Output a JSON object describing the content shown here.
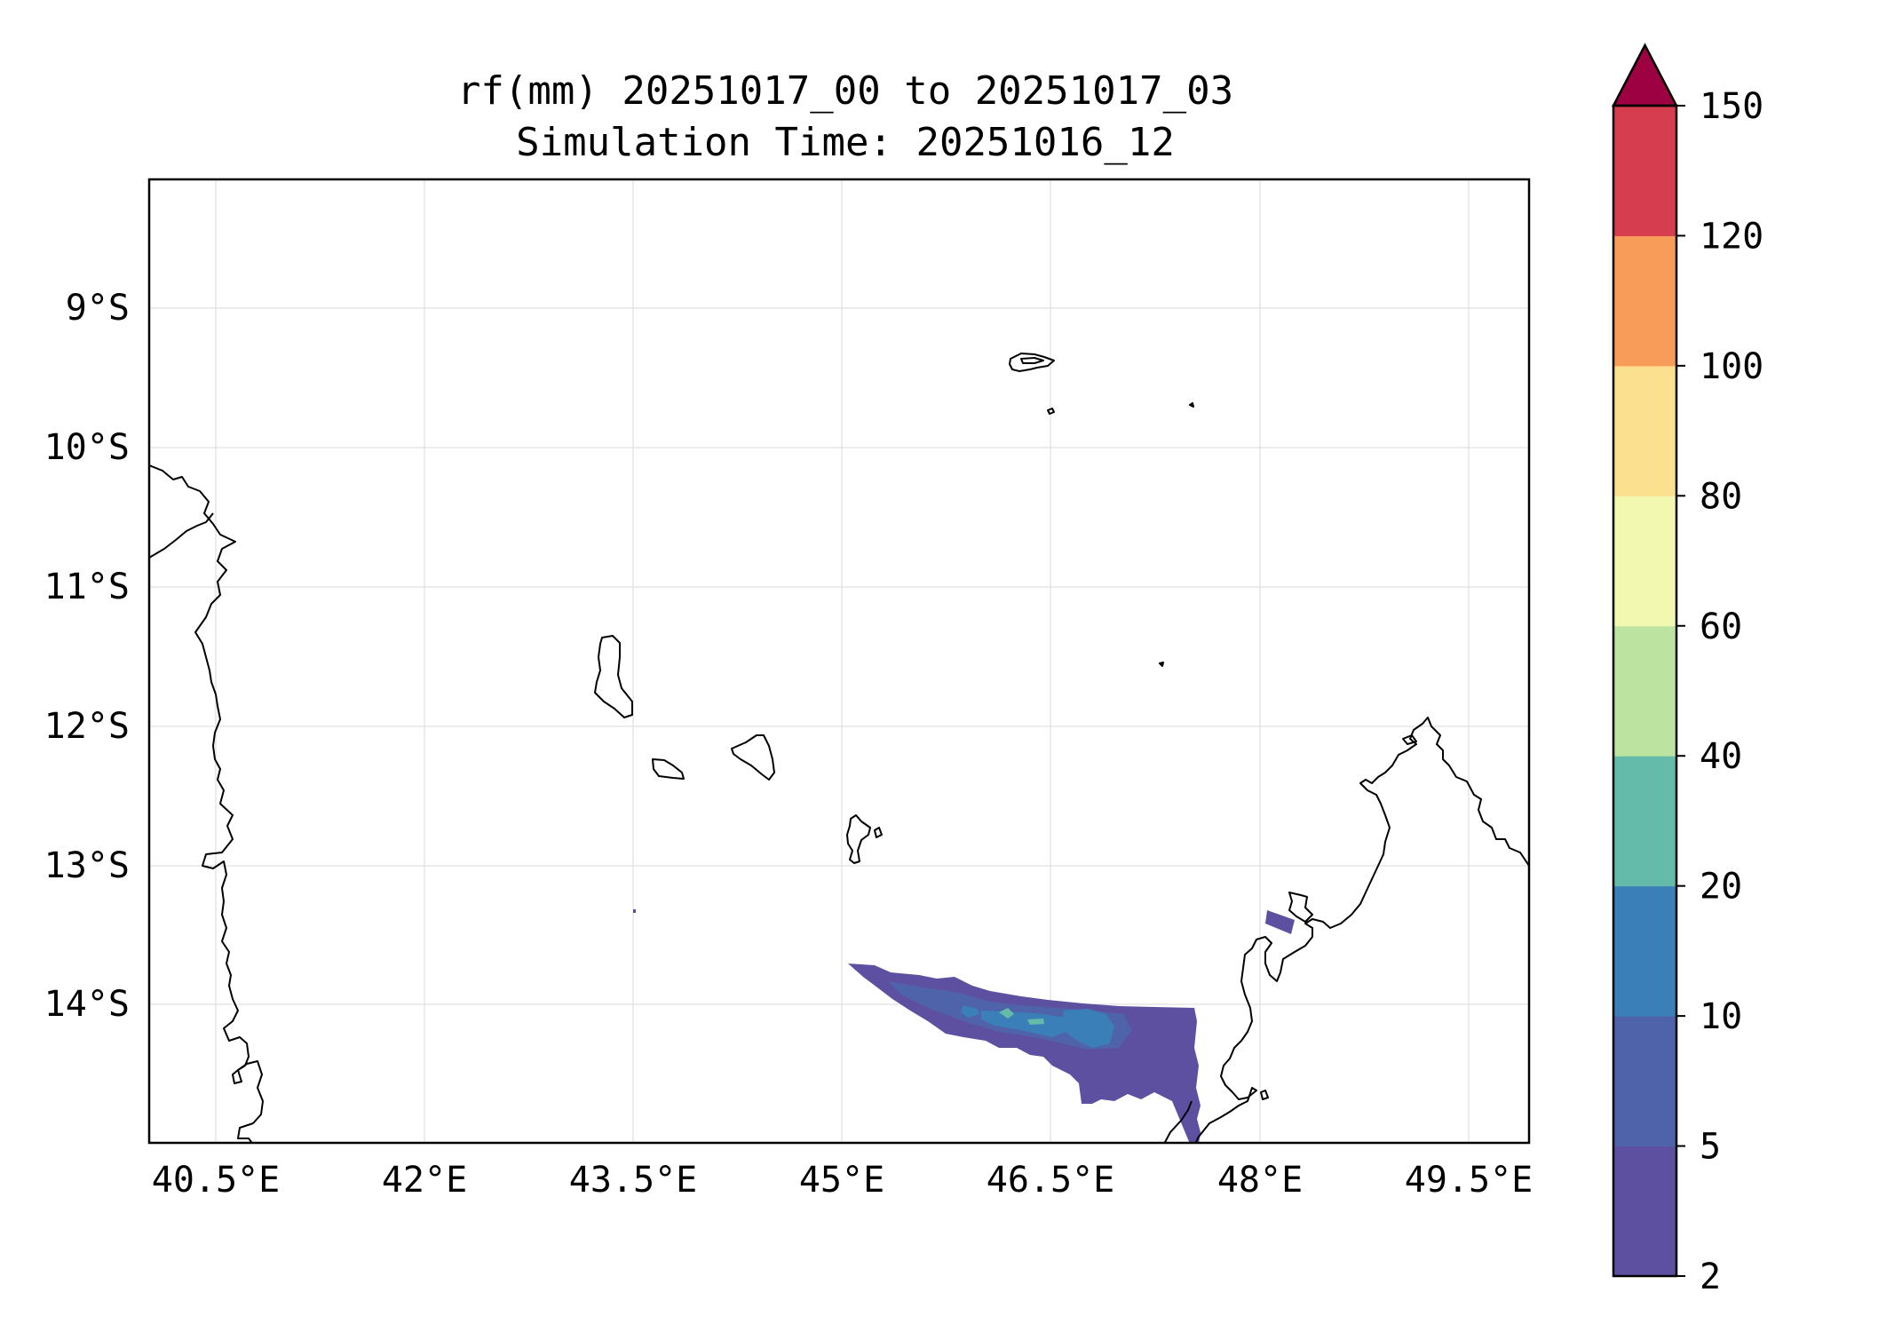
{
  "title": {
    "line1": "rf(mm) 20251017_00 to 20251017_03",
    "line2": "Simulation Time: 20251016_12"
  },
  "map": {
    "lon_range": [
      39.75,
      49.65
    ],
    "lat_range": [
      -15.0,
      -8.1
    ],
    "lon_ticks": [
      "40.5°E",
      "42°E",
      "43.5°E",
      "45°E",
      "46.5°E",
      "48°E",
      "49.5°E"
    ],
    "lat_ticks": [
      "9°S",
      "10°S",
      "11°S",
      "12°S",
      "13°S",
      "14°S"
    ],
    "grid": true
  },
  "colorbar": {
    "levels": [
      "2",
      "5",
      "10",
      "20",
      "40",
      "60",
      "80",
      "100",
      "120",
      "150"
    ],
    "colors": [
      "#5e50a1",
      "#4f63ab",
      "#3a7fb8",
      "#64bba9",
      "#bce4a0",
      "#f2f8b0",
      "#fbe08f",
      "#f89c5a",
      "#d63d4f"
    ],
    "extend_color": "#9e0142",
    "extend": "max"
  }
}
